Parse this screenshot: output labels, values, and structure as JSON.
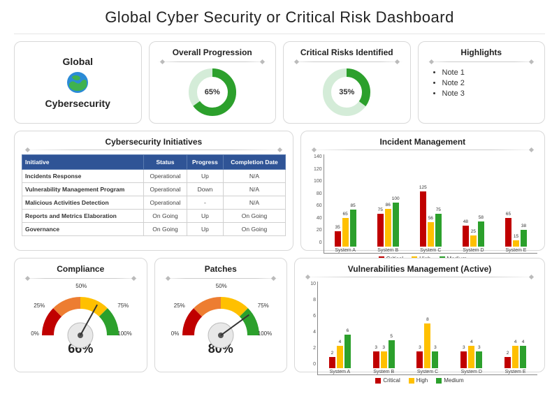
{
  "title": "Global Cyber Security or Critical Risk Dashboard",
  "colors": {
    "critical": "#c00000",
    "high": "#ffc000",
    "medium": "#2ca02c",
    "donut_bg": "#d4ecd8",
    "donut_fg": "#2ca02c",
    "table_header": "#2f5496",
    "gauge_red": "#c00000",
    "gauge_orange": "#ed7d31",
    "gauge_yellow": "#ffc000",
    "gauge_green": "#2ca02c"
  },
  "row1": {
    "global": {
      "top": "Global",
      "bottom": "Cybersecurity"
    },
    "progression": {
      "title": "Overall Progression",
      "value": 65,
      "label": "65%"
    },
    "risks": {
      "title": "Critical Risks Identified",
      "value": 35,
      "label": "35%"
    },
    "highlights": {
      "title": "Highlights",
      "items": [
        "Note 1",
        "Note 2",
        "Note 3"
      ]
    }
  },
  "initiatives": {
    "title": "Cybersecurity Initiatives",
    "columns": [
      "Initiative",
      "Status",
      "Progress",
      "Completion Date"
    ],
    "rows": [
      [
        "Incidents Response",
        "Operational",
        "Up",
        "N/A"
      ],
      [
        "Vulnerability Management Program",
        "Operational",
        "Down",
        "N/A"
      ],
      [
        "Malicious Activities Detection",
        "Operational",
        "-",
        "N/A"
      ],
      [
        "Reports and Metrics Elaboration",
        "On Going",
        "Up",
        "On Going"
      ],
      [
        "Governance",
        "On Going",
        "Up",
        "On Going"
      ]
    ]
  },
  "incident": {
    "title": "Incident Management",
    "ymax": 140,
    "yticks": [
      140,
      120,
      100,
      80,
      60,
      40,
      20,
      0
    ],
    "categories": [
      "System A",
      "System B",
      "System C",
      "System D",
      "System E"
    ],
    "series": [
      {
        "name": "Critical",
        "color": "#c00000",
        "values": [
          35,
          75,
          125,
          48,
          65
        ]
      },
      {
        "name": "High",
        "color": "#ffc000",
        "values": [
          65,
          86,
          56,
          25,
          15
        ]
      },
      {
        "name": "Medium",
        "color": "#2ca02c",
        "values": [
          85,
          100,
          75,
          58,
          38
        ]
      }
    ]
  },
  "compliance": {
    "title": "Compliance",
    "value": 66,
    "label": "66%",
    "ticks": [
      "0%",
      "25%",
      "50%",
      "75%",
      "100%"
    ]
  },
  "patches": {
    "title": "Patches",
    "value": 80,
    "label": "80%",
    "ticks": [
      "0%",
      "25%",
      "50%",
      "75%",
      "100%"
    ]
  },
  "vuln": {
    "title": "Vulnerabilities Management (Active)",
    "ymax": 10,
    "yticks": [
      10,
      8,
      6,
      4,
      2,
      0
    ],
    "categories": [
      "System A",
      "System B",
      "System C",
      "System D",
      "System E"
    ],
    "series": [
      {
        "name": "Critical",
        "color": "#c00000",
        "values": [
          2,
          3,
          3,
          3,
          2
        ]
      },
      {
        "name": "High",
        "color": "#ffc000",
        "values": [
          4,
          3,
          8,
          4,
          4
        ]
      },
      {
        "name": "Medium",
        "color": "#2ca02c",
        "values": [
          6,
          5,
          3,
          3,
          4
        ]
      }
    ]
  }
}
